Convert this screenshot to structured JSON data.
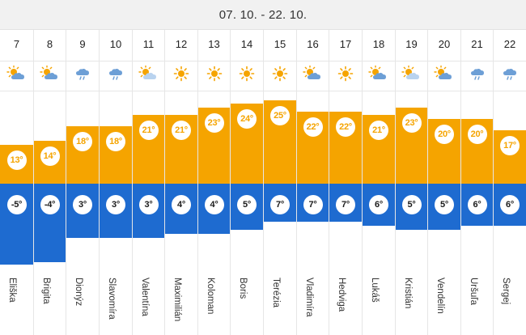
{
  "header": {
    "date_range": "07. 10. - 22. 10."
  },
  "days": [
    {
      "day": "7",
      "name": "Eliška",
      "high": "13°",
      "low": "-5°",
      "high_value": 13,
      "low_value": -5,
      "icon": "partly-cloudy-icon"
    },
    {
      "day": "8",
      "name": "Brigita",
      "high": "14°",
      "low": "-4°",
      "high_value": 14,
      "low_value": -4,
      "icon": "partly-cloudy-icon"
    },
    {
      "day": "9",
      "name": "Dionýz",
      "high": "18°",
      "low": "3°",
      "high_value": 18,
      "low_value": 3,
      "icon": "rain-cloud-icon"
    },
    {
      "day": "10",
      "name": "Slavomíra",
      "high": "18°",
      "low": "3°",
      "high_value": 18,
      "low_value": 3,
      "icon": "rain-cloud-icon"
    },
    {
      "day": "11",
      "name": "Valentína",
      "high": "21°",
      "low": "3°",
      "high_value": 21,
      "low_value": 3,
      "icon": "sun-cloud-icon"
    },
    {
      "day": "12",
      "name": "Maximilián",
      "high": "21°",
      "low": "4°",
      "high_value": 21,
      "low_value": 4,
      "icon": "sun-icon"
    },
    {
      "day": "13",
      "name": "Koloman",
      "high": "23°",
      "low": "4°",
      "high_value": 23,
      "low_value": 4,
      "icon": "sun-icon"
    },
    {
      "day": "14",
      "name": "Boris",
      "high": "24°",
      "low": "5°",
      "high_value": 24,
      "low_value": 5,
      "icon": "sun-icon"
    },
    {
      "day": "15",
      "name": "Terézia",
      "high": "25°",
      "low": "7°",
      "high_value": 25,
      "low_value": 7,
      "icon": "sun-icon"
    },
    {
      "day": "16",
      "name": "Vladimíra",
      "high": "22°",
      "low": "7°",
      "high_value": 22,
      "low_value": 7,
      "icon": "partly-cloudy-icon"
    },
    {
      "day": "17",
      "name": "Hedviga",
      "high": "22°",
      "low": "7°",
      "high_value": 22,
      "low_value": 7,
      "icon": "sun-icon"
    },
    {
      "day": "18",
      "name": "Lukáš",
      "high": "21°",
      "low": "6°",
      "high_value": 21,
      "low_value": 6,
      "icon": "partly-cloudy-icon"
    },
    {
      "day": "19",
      "name": "Kristián",
      "high": "23°",
      "low": "5°",
      "high_value": 23,
      "low_value": 5,
      "icon": "sun-cloud-icon"
    },
    {
      "day": "20",
      "name": "Vendelín",
      "high": "20°",
      "low": "5°",
      "high_value": 20,
      "low_value": 5,
      "icon": "partly-cloudy-icon"
    },
    {
      "day": "21",
      "name": "Uršuľa",
      "high": "20°",
      "low": "6°",
      "high_value": 20,
      "low_value": 6,
      "icon": "rain-cloud-icon"
    },
    {
      "day": "22",
      "name": "Sergej",
      "high": "17°",
      "low": "6°",
      "high_value": 17,
      "low_value": 6,
      "icon": "rain-cloud-icon"
    }
  ],
  "colors": {
    "high": "#f5a400",
    "low": "#1e6bd0",
    "header_bg": "#f1f1f1"
  }
}
